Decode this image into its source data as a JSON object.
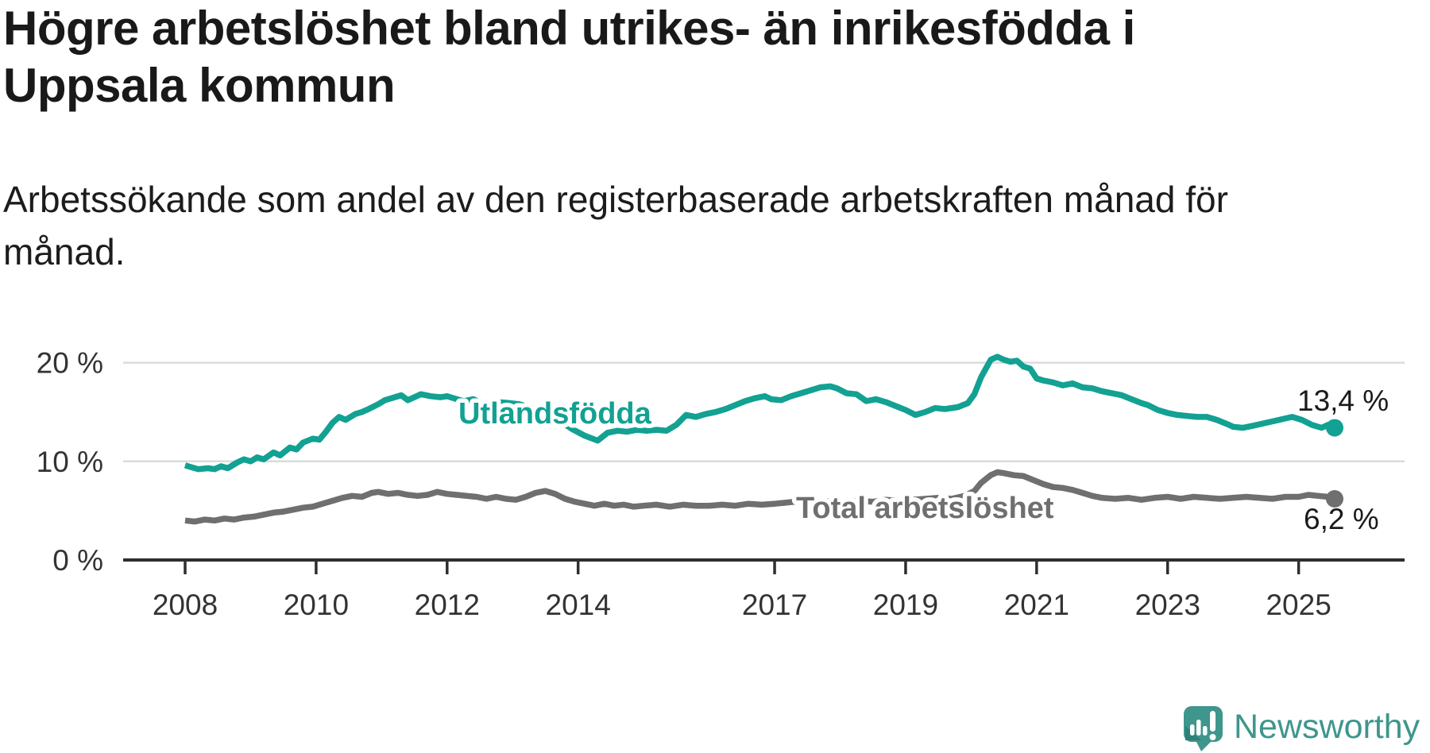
{
  "title": {
    "lines": [
      "Högre arbetslöshet bland utrikes- än inrikesfödda i",
      "Uppsala kommun"
    ]
  },
  "subtitle": {
    "lines": [
      "Arbetssökande som andel av den registerbaserade arbetskraften månad för",
      "månad."
    ]
  },
  "branding": {
    "wordmark": "Newsworthy",
    "color": "#3E968C",
    "icon": "newsworthy-logo-icon"
  },
  "colors": {
    "teal": "#12A192",
    "gray": "#6F6F6F",
    "grid": "#DBDBDB",
    "axis": "#2E2E2E",
    "label_text": "#1A1A1A",
    "tick_text": "#333333",
    "background": "#FFFFFF"
  },
  "chart_data": {
    "type": "line",
    "title": "Högre arbetslöshet bland utrikes- än inrikesfödda i Uppsala kommun",
    "subtitle": "Arbetssökande som andel av den registerbaserade arbetskraften månad för månad.",
    "unit": "%",
    "grid": true,
    "legend_position": "inline-labels",
    "x_axis": {
      "ticks": [
        2008,
        2010,
        2012,
        2014,
        2017,
        2019,
        2021,
        2023,
        2025
      ],
      "range": [
        2007.1,
        2026.6
      ]
    },
    "y_axis": {
      "ticks": [
        {
          "value": 0,
          "label": "0 %"
        },
        {
          "value": 10,
          "label": "10 %"
        },
        {
          "value": 20,
          "label": "20 %"
        }
      ],
      "gridlines": [
        10,
        20
      ],
      "range": [
        0,
        22
      ]
    },
    "series": [
      {
        "name": "Utlandsfödda",
        "color": "#12A192",
        "end_label": "13,4 %",
        "end_value": 13.4,
        "points": [
          [
            2008.0,
            9.6
          ],
          [
            2008.1,
            9.4
          ],
          [
            2008.2,
            9.2
          ],
          [
            2008.35,
            9.3
          ],
          [
            2008.45,
            9.2
          ],
          [
            2008.55,
            9.5
          ],
          [
            2008.65,
            9.3
          ],
          [
            2008.8,
            9.9
          ],
          [
            2008.9,
            10.2
          ],
          [
            2009.0,
            10.0
          ],
          [
            2009.1,
            10.4
          ],
          [
            2009.2,
            10.2
          ],
          [
            2009.35,
            10.9
          ],
          [
            2009.45,
            10.6
          ],
          [
            2009.6,
            11.4
          ],
          [
            2009.7,
            11.2
          ],
          [
            2009.8,
            11.9
          ],
          [
            2009.95,
            12.3
          ],
          [
            2010.05,
            12.2
          ],
          [
            2010.15,
            13.0
          ],
          [
            2010.25,
            13.9
          ],
          [
            2010.35,
            14.5
          ],
          [
            2010.45,
            14.2
          ],
          [
            2010.6,
            14.8
          ],
          [
            2010.7,
            15.0
          ],
          [
            2010.8,
            15.3
          ],
          [
            2010.95,
            15.8
          ],
          [
            2011.05,
            16.2
          ],
          [
            2011.2,
            16.5
          ],
          [
            2011.3,
            16.7
          ],
          [
            2011.4,
            16.2
          ],
          [
            2011.5,
            16.5
          ],
          [
            2011.6,
            16.8
          ],
          [
            2011.75,
            16.6
          ],
          [
            2011.9,
            16.5
          ],
          [
            2012.0,
            16.6
          ],
          [
            2012.1,
            16.4
          ],
          [
            2012.25,
            16.1
          ],
          [
            2012.4,
            16.3
          ],
          [
            2012.5,
            16.0
          ],
          [
            2012.65,
            15.6
          ],
          [
            2012.8,
            16.0
          ],
          [
            2012.95,
            15.9
          ],
          [
            2013.1,
            15.8
          ],
          [
            2013.3,
            15.4
          ],
          [
            2013.5,
            14.9
          ],
          [
            2013.7,
            14.2
          ],
          [
            2013.9,
            13.3
          ],
          [
            2014.1,
            12.6
          ],
          [
            2014.3,
            12.1
          ],
          [
            2014.45,
            12.9
          ],
          [
            2014.6,
            13.1
          ],
          [
            2014.75,
            13.0
          ],
          [
            2014.9,
            13.2
          ],
          [
            2015.05,
            13.1
          ],
          [
            2015.2,
            13.2
          ],
          [
            2015.35,
            13.1
          ],
          [
            2015.5,
            13.7
          ],
          [
            2015.65,
            14.7
          ],
          [
            2015.8,
            14.5
          ],
          [
            2015.95,
            14.8
          ],
          [
            2016.1,
            15.0
          ],
          [
            2016.25,
            15.3
          ],
          [
            2016.4,
            15.7
          ],
          [
            2016.55,
            16.1
          ],
          [
            2016.7,
            16.4
          ],
          [
            2016.85,
            16.6
          ],
          [
            2016.95,
            16.3
          ],
          [
            2017.1,
            16.2
          ],
          [
            2017.25,
            16.6
          ],
          [
            2017.4,
            16.9
          ],
          [
            2017.55,
            17.2
          ],
          [
            2017.7,
            17.5
          ],
          [
            2017.85,
            17.6
          ],
          [
            2017.95,
            17.4
          ],
          [
            2018.1,
            16.9
          ],
          [
            2018.25,
            16.8
          ],
          [
            2018.4,
            16.1
          ],
          [
            2018.55,
            16.3
          ],
          [
            2018.7,
            16.0
          ],
          [
            2018.85,
            15.6
          ],
          [
            2019.0,
            15.2
          ],
          [
            2019.15,
            14.7
          ],
          [
            2019.3,
            15.0
          ],
          [
            2019.45,
            15.4
          ],
          [
            2019.6,
            15.3
          ],
          [
            2019.8,
            15.5
          ],
          [
            2019.95,
            15.9
          ],
          [
            2020.05,
            16.8
          ],
          [
            2020.15,
            18.5
          ],
          [
            2020.3,
            20.3
          ],
          [
            2020.4,
            20.6
          ],
          [
            2020.5,
            20.3
          ],
          [
            2020.6,
            20.1
          ],
          [
            2020.7,
            20.2
          ],
          [
            2020.8,
            19.6
          ],
          [
            2020.9,
            19.4
          ],
          [
            2021.0,
            18.4
          ],
          [
            2021.1,
            18.2
          ],
          [
            2021.25,
            18.0
          ],
          [
            2021.4,
            17.7
          ],
          [
            2021.55,
            17.9
          ],
          [
            2021.7,
            17.5
          ],
          [
            2021.85,
            17.4
          ],
          [
            2022.0,
            17.1
          ],
          [
            2022.15,
            16.9
          ],
          [
            2022.3,
            16.7
          ],
          [
            2022.45,
            16.3
          ],
          [
            2022.6,
            15.9
          ],
          [
            2022.7,
            15.7
          ],
          [
            2022.85,
            15.2
          ],
          [
            2023.0,
            14.9
          ],
          [
            2023.15,
            14.7
          ],
          [
            2023.3,
            14.6
          ],
          [
            2023.45,
            14.5
          ],
          [
            2023.6,
            14.5
          ],
          [
            2023.75,
            14.2
          ],
          [
            2023.9,
            13.8
          ],
          [
            2024.0,
            13.5
          ],
          [
            2024.15,
            13.4
          ],
          [
            2024.3,
            13.6
          ],
          [
            2024.5,
            13.9
          ],
          [
            2024.7,
            14.2
          ],
          [
            2024.9,
            14.5
          ],
          [
            2025.05,
            14.2
          ],
          [
            2025.2,
            13.7
          ],
          [
            2025.35,
            13.4
          ],
          [
            2025.45,
            13.7
          ],
          [
            2025.55,
            13.4
          ]
        ]
      },
      {
        "name": "Total arbetslöshet",
        "color": "#6F6F6F",
        "end_label": "6,2 %",
        "end_value": 6.2,
        "points": [
          [
            2008.0,
            4.0
          ],
          [
            2008.15,
            3.9
          ],
          [
            2008.3,
            4.1
          ],
          [
            2008.45,
            4.0
          ],
          [
            2008.6,
            4.2
          ],
          [
            2008.75,
            4.1
          ],
          [
            2008.9,
            4.3
          ],
          [
            2009.05,
            4.4
          ],
          [
            2009.2,
            4.6
          ],
          [
            2009.35,
            4.8
          ],
          [
            2009.5,
            4.9
          ],
          [
            2009.65,
            5.1
          ],
          [
            2009.8,
            5.3
          ],
          [
            2009.95,
            5.4
          ],
          [
            2010.1,
            5.7
          ],
          [
            2010.25,
            6.0
          ],
          [
            2010.4,
            6.3
          ],
          [
            2010.55,
            6.5
          ],
          [
            2010.7,
            6.4
          ],
          [
            2010.85,
            6.8
          ],
          [
            2010.95,
            6.9
          ],
          [
            2011.1,
            6.7
          ],
          [
            2011.25,
            6.8
          ],
          [
            2011.4,
            6.6
          ],
          [
            2011.55,
            6.5
          ],
          [
            2011.7,
            6.6
          ],
          [
            2011.85,
            6.9
          ],
          [
            2012.0,
            6.7
          ],
          [
            2012.15,
            6.6
          ],
          [
            2012.3,
            6.5
          ],
          [
            2012.45,
            6.4
          ],
          [
            2012.6,
            6.2
          ],
          [
            2012.75,
            6.4
          ],
          [
            2012.9,
            6.2
          ],
          [
            2013.05,
            6.1
          ],
          [
            2013.2,
            6.4
          ],
          [
            2013.35,
            6.8
          ],
          [
            2013.5,
            7.0
          ],
          [
            2013.65,
            6.7
          ],
          [
            2013.8,
            6.2
          ],
          [
            2013.95,
            5.9
          ],
          [
            2014.1,
            5.7
          ],
          [
            2014.25,
            5.5
          ],
          [
            2014.4,
            5.7
          ],
          [
            2014.55,
            5.5
          ],
          [
            2014.7,
            5.6
          ],
          [
            2014.85,
            5.4
          ],
          [
            2015.0,
            5.5
          ],
          [
            2015.2,
            5.6
          ],
          [
            2015.4,
            5.4
          ],
          [
            2015.6,
            5.6
          ],
          [
            2015.8,
            5.5
          ],
          [
            2016.0,
            5.5
          ],
          [
            2016.2,
            5.6
          ],
          [
            2016.4,
            5.5
          ],
          [
            2016.6,
            5.7
          ],
          [
            2016.8,
            5.6
          ],
          [
            2017.0,
            5.7
          ],
          [
            2017.15,
            5.8
          ],
          [
            2017.3,
            5.9
          ],
          [
            2017.5,
            6.0
          ],
          [
            2017.7,
            5.9
          ],
          [
            2017.9,
            6.0
          ],
          [
            2018.1,
            5.9
          ],
          [
            2018.3,
            6.0
          ],
          [
            2018.5,
            5.9
          ],
          [
            2018.7,
            6.1
          ],
          [
            2018.9,
            6.0
          ],
          [
            2019.1,
            6.1
          ],
          [
            2019.3,
            6.2
          ],
          [
            2019.5,
            6.3
          ],
          [
            2019.7,
            6.2
          ],
          [
            2019.9,
            6.5
          ],
          [
            2020.05,
            7.0
          ],
          [
            2020.15,
            7.8
          ],
          [
            2020.3,
            8.6
          ],
          [
            2020.4,
            8.9
          ],
          [
            2020.5,
            8.8
          ],
          [
            2020.65,
            8.6
          ],
          [
            2020.8,
            8.5
          ],
          [
            2020.95,
            8.1
          ],
          [
            2021.1,
            7.7
          ],
          [
            2021.25,
            7.4
          ],
          [
            2021.4,
            7.3
          ],
          [
            2021.55,
            7.1
          ],
          [
            2021.7,
            6.8
          ],
          [
            2021.85,
            6.5
          ],
          [
            2022.0,
            6.3
          ],
          [
            2022.2,
            6.2
          ],
          [
            2022.4,
            6.3
          ],
          [
            2022.6,
            6.1
          ],
          [
            2022.8,
            6.3
          ],
          [
            2023.0,
            6.4
          ],
          [
            2023.2,
            6.2
          ],
          [
            2023.4,
            6.4
          ],
          [
            2023.6,
            6.3
          ],
          [
            2023.8,
            6.2
          ],
          [
            2024.0,
            6.3
          ],
          [
            2024.2,
            6.4
          ],
          [
            2024.4,
            6.3
          ],
          [
            2024.6,
            6.2
          ],
          [
            2024.8,
            6.4
          ],
          [
            2025.0,
            6.4
          ],
          [
            2025.15,
            6.6
          ],
          [
            2025.3,
            6.5
          ],
          [
            2025.45,
            6.4
          ],
          [
            2025.55,
            6.2
          ]
        ]
      }
    ]
  }
}
